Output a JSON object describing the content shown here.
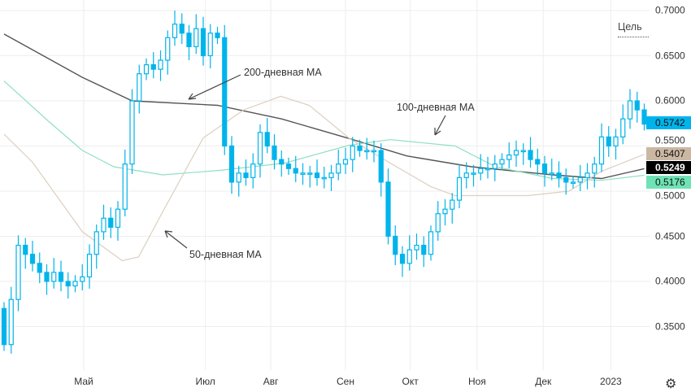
{
  "chart_data": {
    "type": "candlestick",
    "yaxis_ticks": [
      "0.7000",
      "0.6500",
      "0.6000",
      "0.5500",
      "0.5000",
      "0.4500",
      "0.4000",
      "0.3500"
    ],
    "yaxis_tick_values": [
      0.7,
      0.65,
      0.6,
      0.55,
      0.5,
      0.45,
      0.4,
      0.35
    ],
    "ylim": [
      0.3,
      0.71
    ],
    "xaxis_ticks": [
      {
        "label": "Май",
        "index": 11.2
      },
      {
        "label": "Июл",
        "index": 28.3
      },
      {
        "label": "Авг",
        "index": 37.5
      },
      {
        "label": "Сен",
        "index": 48
      },
      {
        "label": "Окт",
        "index": 57.1
      },
      {
        "label": "Ноя",
        "index": 66.5
      },
      {
        "label": "Дек",
        "index": 75.8
      },
      {
        "label": "2023",
        "index": 85.3
      }
    ],
    "start_open": 0.37,
    "closes": [
      0.33,
      0.38,
      0.44,
      0.43,
      0.42,
      0.41,
      0.4,
      0.41,
      0.4,
      0.395,
      0.4,
      0.405,
      0.43,
      0.455,
      0.47,
      0.46,
      0.48,
      0.53,
      0.6,
      0.63,
      0.64,
      0.635,
      0.645,
      0.67,
      0.685,
      0.675,
      0.66,
      0.68,
      0.65,
      0.675,
      0.67,
      0.55,
      0.51,
      0.52,
      0.515,
      0.53,
      0.565,
      0.55,
      0.535,
      0.53,
      0.525,
      0.52,
      0.52,
      0.52,
      0.515,
      0.515,
      0.52,
      0.53,
      0.535,
      0.55,
      0.545,
      0.545,
      0.545,
      0.51,
      0.45,
      0.43,
      0.42,
      0.435,
      0.44,
      0.43,
      0.455,
      0.475,
      0.48,
      0.49,
      0.515,
      0.52,
      0.52,
      0.525,
      0.525,
      0.53,
      0.535,
      0.54,
      0.545,
      0.545,
      0.535,
      0.53,
      0.52,
      0.52,
      0.515,
      0.51,
      0.51,
      0.515,
      0.52,
      0.53,
      0.56,
      0.55,
      0.56,
      0.58,
      0.6,
      0.59,
      0.5742
    ],
    "moving_averages": [
      {
        "name": "200-дневная MA",
        "color": "#555555",
        "points": [
          [
            0,
            0.674
          ],
          [
            11,
            0.626
          ],
          [
            18,
            0.6
          ],
          [
            30,
            0.595
          ],
          [
            39,
            0.58
          ],
          [
            48.6,
            0.558
          ],
          [
            56.6,
            0.539
          ],
          [
            65.7,
            0.527
          ],
          [
            77.1,
            0.518
          ],
          [
            84,
            0.514
          ],
          [
            90,
            0.5249
          ]
        ]
      },
      {
        "name": "100-дневная MA",
        "color": "#8ee0c2",
        "points": [
          [
            0,
            0.622
          ],
          [
            6.3,
            0.577
          ],
          [
            11,
            0.545
          ],
          [
            15.4,
            0.527
          ],
          [
            22.3,
            0.518
          ],
          [
            30.3,
            0.523
          ],
          [
            39.4,
            0.531
          ],
          [
            48.6,
            0.551
          ],
          [
            54.3,
            0.557
          ],
          [
            63.4,
            0.55
          ],
          [
            69.1,
            0.527
          ],
          [
            77.1,
            0.514
          ],
          [
            84,
            0.512
          ],
          [
            90,
            0.5176
          ]
        ]
      },
      {
        "name": "50-дневная MA",
        "color": "#dccfbf",
        "points": [
          [
            0,
            0.563
          ],
          [
            4,
            0.532
          ],
          [
            11,
            0.455
          ],
          [
            16.6,
            0.423
          ],
          [
            18.9,
            0.427
          ],
          [
            22.3,
            0.477
          ],
          [
            28,
            0.559
          ],
          [
            33.7,
            0.59
          ],
          [
            38.9,
            0.605
          ],
          [
            42.9,
            0.595
          ],
          [
            48.6,
            0.558
          ],
          [
            54.3,
            0.531
          ],
          [
            60,
            0.505
          ],
          [
            63.4,
            0.495
          ],
          [
            73.7,
            0.495
          ],
          [
            79.4,
            0.5
          ],
          [
            84,
            0.522
          ],
          [
            90,
            0.5407
          ]
        ]
      }
    ],
    "price_tags": [
      {
        "value": "0.5742",
        "bg": "#00b4eb",
        "fg": "#111111"
      },
      {
        "value": "0.5407",
        "bg": "#cbb8a3",
        "fg": "#111111"
      },
      {
        "value": "0.5249",
        "bg": "#000000",
        "fg": "#ffffff"
      },
      {
        "value": "0.5176",
        "bg": "#6fe3b5",
        "fg": "#111111"
      }
    ],
    "annotations": [
      {
        "text": "200-дневная MA"
      },
      {
        "text": "100-дневная MA"
      },
      {
        "text": "50-дневная MA"
      }
    ],
    "candle_color": "#00b4eb"
  },
  "target_label": "Цель",
  "settings_icon": "gear-icon"
}
